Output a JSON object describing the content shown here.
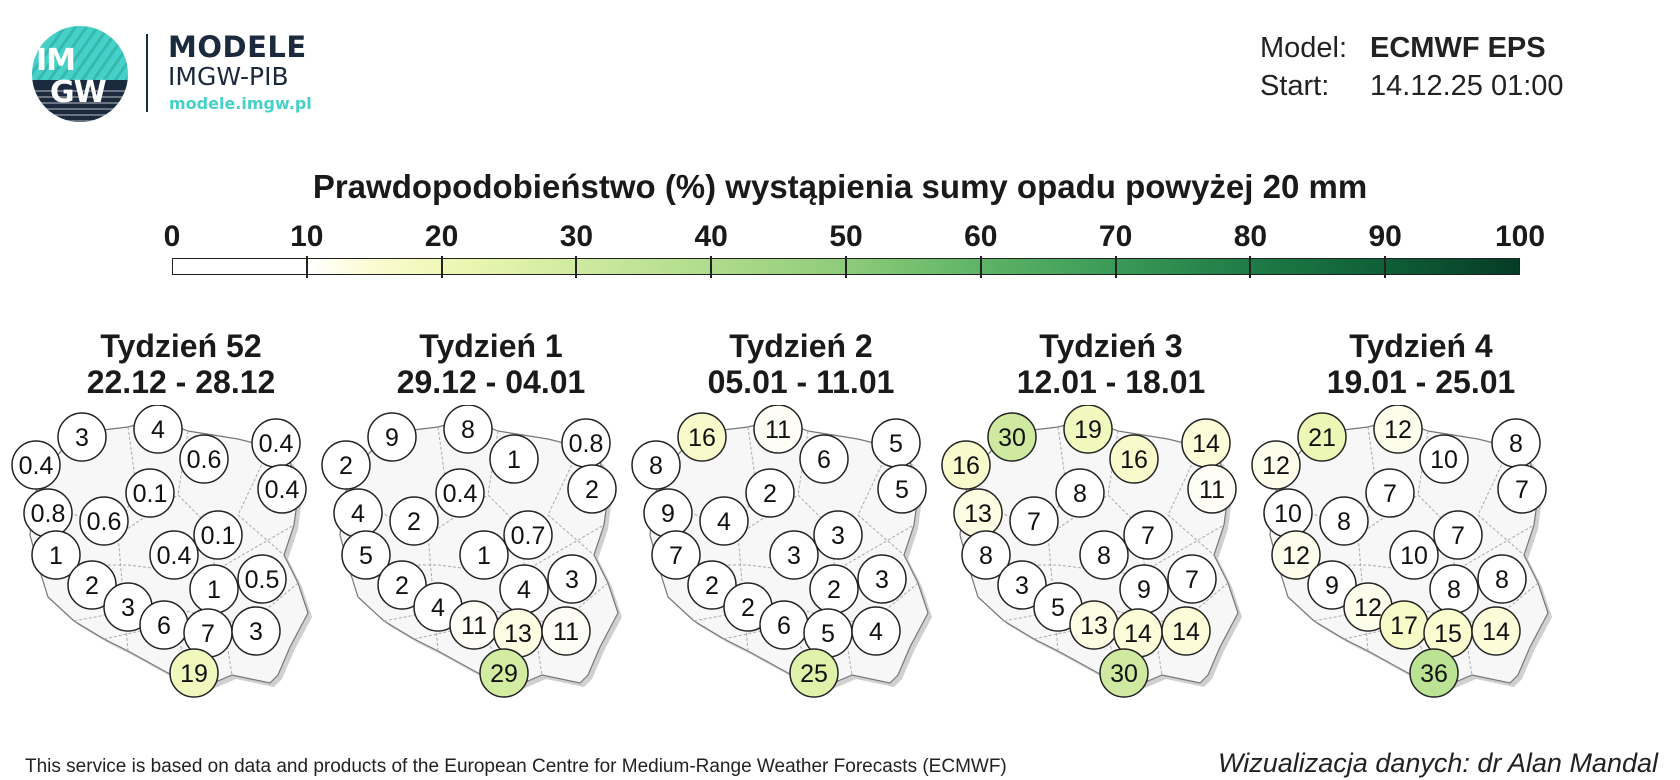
{
  "logo": {
    "line1": "IM",
    "line2": "GW"
  },
  "brand": {
    "name": "MODELE",
    "sub": "IMGW-PIB",
    "url": "modele.imgw.pl"
  },
  "meta": {
    "model_label": "Model:",
    "model_value": "ECMWF EPS",
    "start_label": "Start:",
    "start_value": "14.12.25 01:00"
  },
  "title": "Prawdopodobieństwo (%) wystąpienia sumy opadu powyżej 20 mm",
  "colorbar": {
    "ticks": [
      "0",
      "10",
      "20",
      "30",
      "40",
      "50",
      "60",
      "70",
      "80",
      "90",
      "100"
    ]
  },
  "weeks": [
    {
      "name": "Tydzień 52",
      "dates": "22.12 - 28.12",
      "values": [
        "0.4",
        "3",
        "4",
        "0.6",
        "0.4",
        "0.4",
        "0.8",
        "0.6",
        "0.1",
        "0.1",
        "1",
        "0.4",
        "2",
        "1",
        "0.5",
        "3",
        "6",
        "7",
        "3",
        "19"
      ]
    },
    {
      "name": "Tydzień 1",
      "dates": "29.12 - 04.01",
      "values": [
        "2",
        "9",
        "8",
        "1",
        "0.8",
        "2",
        "4",
        "2",
        "0.4",
        "0.7",
        "5",
        "1",
        "2",
        "4",
        "3",
        "4",
        "11",
        "13",
        "11",
        "29"
      ]
    },
    {
      "name": "Tydzień 2",
      "dates": "05.01 - 11.01",
      "values": [
        "8",
        "16",
        "11",
        "6",
        "5",
        "5",
        "9",
        "4",
        "2",
        "3",
        "7",
        "3",
        "2",
        "2",
        "3",
        "2",
        "6",
        "5",
        "4",
        "25"
      ]
    },
    {
      "name": "Tydzień 3",
      "dates": "12.01 - 18.01",
      "values": [
        "16",
        "30",
        "19",
        "16",
        "14",
        "11",
        "13",
        "7",
        "8",
        "7",
        "8",
        "8",
        "3",
        "9",
        "7",
        "5",
        "13",
        "14",
        "14",
        "30"
      ]
    },
    {
      "name": "Tydzień 4",
      "dates": "19.01 - 25.01",
      "values": [
        "12",
        "21",
        "12",
        "10",
        "8",
        "7",
        "10",
        "8",
        "7",
        "7",
        "12",
        "10",
        "9",
        "8",
        "8",
        "12",
        "17",
        "15",
        "14",
        "36"
      ]
    }
  ],
  "footer": {
    "left": "This service is based on data and products of the European Centre for Medium-Range Weather Forecasts (ECMWF)",
    "right": "Wizualizacja danych: dr Alan Mandal"
  }
}
